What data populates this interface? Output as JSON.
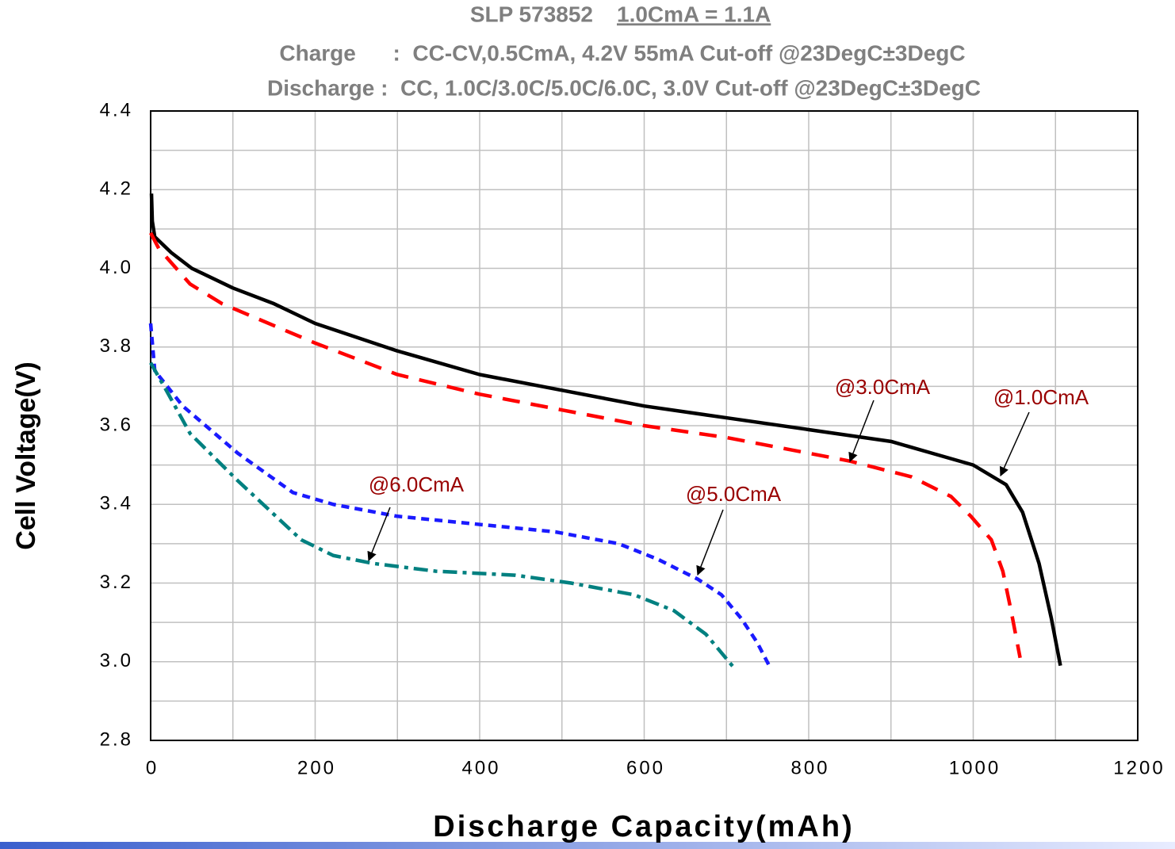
{
  "chart_data": {
    "type": "line",
    "title": "SLP 573852",
    "title_rating": "1.0CmA = 1.1A",
    "subtitle": [
      "Charge      :  CC-CV,0.5CmA, 4.2V 55mA Cut-off @23DegC±3DegC",
      "Discharge :  CC, 1.0C/3.0C/5.0C/6.0C, 3.0V Cut-off @23DegC±3DegC"
    ],
    "x_label": "Discharge Capacity(mAh)",
    "y_label": "Cell Voltage(V)",
    "xlim": [
      0,
      1200
    ],
    "xticks": [
      0,
      200,
      400,
      600,
      800,
      1000,
      1200
    ],
    "xminorticks": [
      100,
      300,
      500,
      700,
      900,
      1100
    ],
    "ylim": [
      2.8,
      4.4
    ],
    "yticks": [
      2.8,
      {
        "value": 3,
        "label": "3.0"
      },
      3.2,
      3.4,
      3.6,
      3.8,
      {
        "value": 4,
        "label": "4.0"
      },
      4.2,
      4.4
    ],
    "yminorticks": [
      2.9,
      3.1,
      3.3,
      3.5,
      3.7,
      3.9,
      4.1,
      4.3
    ],
    "grid": true,
    "series": [
      {
        "name": "@1.0CmA",
        "color": "#000000",
        "dash": "solid",
        "x": [
          1,
          2,
          5,
          25,
          50,
          100,
          150,
          200,
          300,
          400,
          500,
          600,
          700,
          800,
          900,
          950,
          1000,
          1040,
          1060,
          1080,
          1095,
          1106
        ],
        "values": [
          4.19,
          4.12,
          4.08,
          4.04,
          4.0,
          3.95,
          3.91,
          3.86,
          3.79,
          3.73,
          3.69,
          3.65,
          3.62,
          3.59,
          3.56,
          3.53,
          3.5,
          3.45,
          3.38,
          3.25,
          3.11,
          2.99
        ]
      },
      {
        "name": "@3.0CmA",
        "color": "#ff0000",
        "dash": "dashed",
        "x": [
          0,
          10,
          48,
          87,
          200,
          300,
          400,
          500,
          600,
          700,
          800,
          850,
          925,
          973,
          997,
          1022,
          1036,
          1046,
          1057
        ],
        "values": [
          4.09,
          4.05,
          3.96,
          3.91,
          3.81,
          3.73,
          3.68,
          3.64,
          3.6,
          3.57,
          3.53,
          3.51,
          3.47,
          3.42,
          3.37,
          3.31,
          3.23,
          3.13,
          3.01
        ]
      },
      {
        "name": "@5.0CmA",
        "color": "#1a1aff",
        "dash": "dotted",
        "x": [
          0,
          5,
          39,
          106,
          173,
          222,
          299,
          395,
          492,
          569,
          617,
          665,
          694,
          718,
          737,
          752
        ],
        "values": [
          3.86,
          3.74,
          3.65,
          3.53,
          3.43,
          3.4,
          3.37,
          3.35,
          3.33,
          3.3,
          3.26,
          3.21,
          3.17,
          3.11,
          3.05,
          2.99
        ]
      },
      {
        "name": "@6.0CmA",
        "color": "#008080",
        "dash": "dashdot",
        "x": [
          0,
          19,
          48,
          106,
          183,
          222,
          270,
          347,
          443,
          511,
          588,
          636,
          675,
          711
        ],
        "values": [
          3.76,
          3.69,
          3.58,
          3.46,
          3.31,
          3.27,
          3.25,
          3.23,
          3.22,
          3.2,
          3.17,
          3.13,
          3.07,
          2.98
        ]
      }
    ]
  }
}
